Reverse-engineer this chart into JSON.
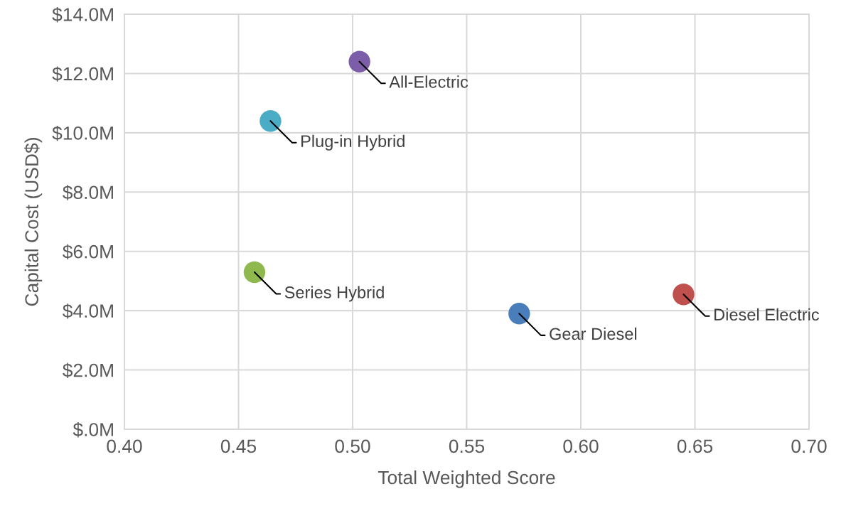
{
  "chart_data": {
    "type": "scatter",
    "xlabel": "Total Weighted Score",
    "ylabel": "Capital Cost (USD$)",
    "x": [
      0.503,
      0.464,
      0.457,
      0.573,
      0.645
    ],
    "values": [
      12.4,
      10.4,
      5.3,
      3.9,
      4.55
    ],
    "colors": [
      "#7b5ea7",
      "#4bacc6",
      "#8fb84e",
      "#4a7ebb",
      "#c0504d"
    ],
    "marker": "circle",
    "grid": true,
    "xlim": [
      0.4,
      0.7
    ],
    "xticks": [
      {
        "value": 0.4,
        "label": "0.40"
      },
      {
        "value": 0.45,
        "label": "0.45"
      },
      {
        "value": 0.5,
        "label": "0.50"
      },
      {
        "value": 0.55,
        "label": "0.55"
      },
      {
        "value": 0.6,
        "label": "0.60"
      },
      {
        "value": 0.65,
        "label": "0.65"
      },
      {
        "value": 0.7,
        "label": "0.70"
      }
    ],
    "ylim": [
      0,
      14
    ],
    "yticks": [
      {
        "value": 0,
        "label": "$.0M"
      },
      {
        "value": 2,
        "label": "$2.0M"
      },
      {
        "value": 4,
        "label": "$4.0M"
      },
      {
        "value": 6,
        "label": "$6.0M"
      },
      {
        "value": 8,
        "label": "$8.0M"
      },
      {
        "value": 10,
        "label": "$10.0M"
      },
      {
        "value": 12,
        "label": "$12.0M"
      },
      {
        "value": 14,
        "label": "$14.0M"
      }
    ],
    "annotations": [
      {
        "text": "All-Electric",
        "x": 0.503,
        "y": 12.4
      },
      {
        "text": "Plug-in Hybrid",
        "x": 0.464,
        "y": 10.4
      },
      {
        "text": "Series Hybrid",
        "x": 0.457,
        "y": 5.3
      },
      {
        "text": "Gear Diesel",
        "x": 0.573,
        "y": 3.9
      },
      {
        "text": "Diesel Electric",
        "x": 0.645,
        "y": 4.55
      }
    ]
  }
}
